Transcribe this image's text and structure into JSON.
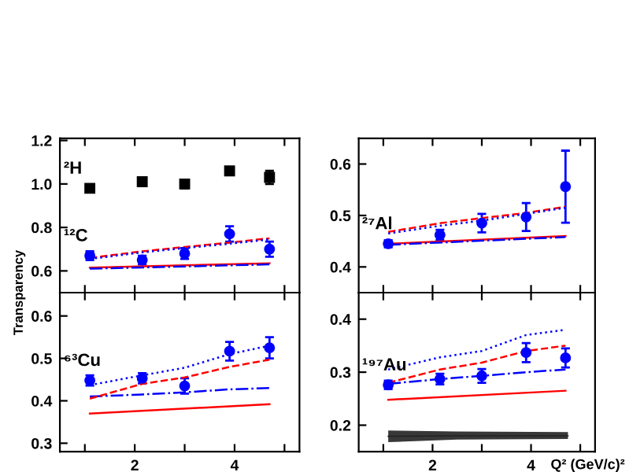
{
  "chart_data": [
    {
      "type": "scatter",
      "ylabel": "Transparency",
      "xlim": [
        0.5,
        5.3
      ],
      "ylim": [
        0.5,
        1.21
      ],
      "xticks": [
        {
          "value": 1,
          "label": null
        },
        2,
        {
          "value": 3,
          "label": null
        },
        4,
        {
          "value": 5,
          "label": null
        }
      ],
      "yticks": [
        0.6,
        0.8,
        {
          "value": 1.0,
          "label": "1.0"
        },
        1.2
      ],
      "tick_labels": "y",
      "grid": false,
      "series": [
        {
          "name": "²H",
          "marker": "square",
          "color": "#000000",
          "x": [
            1.1,
            2.15,
            3.0,
            3.9,
            4.7
          ],
          "values": [
            0.98,
            1.01,
            1.0,
            1.06,
            1.03
          ],
          "errors": [
            0.015,
            0.015,
            0.02,
            0.015,
            0.03
          ]
        },
        {
          "name": "¹²C",
          "marker": "circle",
          "color": "#0000ff",
          "x": [
            1.1,
            2.15,
            3.0,
            3.9,
            4.7
          ],
          "values": [
            0.67,
            0.65,
            0.68,
            0.77,
            0.7
          ],
          "errors": [
            0.02,
            0.02,
            0.025,
            0.035,
            0.035
          ]
        },
        {
          "type": "line",
          "line_style": "solid",
          "color": "#ff0000",
          "x": [
            1.1,
            4.7
          ],
          "values": [
            0.615,
            0.635
          ]
        },
        {
          "type": "line",
          "line_style": "dashdot",
          "color": "#0000ff",
          "x": [
            1.1,
            4.7
          ],
          "values": [
            0.61,
            0.63
          ]
        },
        {
          "type": "line",
          "line_style": "dashed",
          "color": "#ff0000",
          "x": [
            1.1,
            2.15,
            3.0,
            3.9,
            4.7
          ],
          "values": [
            0.66,
            0.69,
            0.71,
            0.73,
            0.75
          ]
        },
        {
          "type": "line",
          "line_style": "dotted",
          "color": "#0000ff",
          "x": [
            1.1,
            2.15,
            3.0,
            3.9,
            4.7
          ],
          "values": [
            0.655,
            0.685,
            0.705,
            0.725,
            0.745
          ]
        }
      ]
    },
    {
      "type": "scatter",
      "xlim": [
        0.5,
        5.3
      ],
      "ylim": [
        0.35,
        0.65
      ],
      "xticks": [
        {
          "value": 1,
          "label": null
        },
        2,
        {
          "value": 3,
          "label": null
        },
        4,
        {
          "value": 5,
          "label": null
        }
      ],
      "yticks": [
        0.4,
        0.5,
        0.6
      ],
      "tick_labels": "y",
      "grid": false,
      "legend": false,
      "series": [
        {
          "name": "²⁷Al",
          "marker": "circle",
          "color": "#0000ff",
          "x": [
            1.1,
            2.15,
            3.0,
            3.9,
            4.7
          ],
          "values": [
            0.445,
            0.462,
            0.485,
            0.497,
            0.556
          ],
          "errors": [
            0.007,
            0.01,
            0.018,
            0.027,
            0.07
          ]
        },
        {
          "type": "line",
          "line_style": "solid",
          "color": "#ff0000",
          "x": [
            1.1,
            4.7
          ],
          "values": [
            0.445,
            0.46
          ]
        },
        {
          "type": "line",
          "line_style": "dashdot",
          "color": "#0000ff",
          "x": [
            1.1,
            4.7
          ],
          "values": [
            0.443,
            0.458
          ]
        },
        {
          "type": "line",
          "line_style": "dashed",
          "color": "#ff0000",
          "x": [
            1.1,
            2.15,
            3.0,
            3.9,
            4.7
          ],
          "values": [
            0.468,
            0.485,
            0.495,
            0.505,
            0.517
          ]
        },
        {
          "type": "line",
          "line_style": "dotted",
          "color": "#0000ff",
          "x": [
            1.1,
            2.15,
            3.0,
            3.9,
            4.7
          ],
          "values": [
            0.465,
            0.48,
            0.49,
            0.503,
            0.515
          ]
        }
      ]
    },
    {
      "type": "scatter",
      "xlim": [
        0.5,
        5.3
      ],
      "ylim": [
        0.28,
        0.655
      ],
      "xticks": [
        {
          "value": 1,
          "label": null
        },
        2,
        {
          "value": 3,
          "label": null
        },
        4,
        {
          "value": 5,
          "label": null
        }
      ],
      "yticks": [
        0.3,
        0.4,
        0.5,
        0.6
      ],
      "grid": false,
      "legend": false,
      "series": [
        {
          "name": "⁶³Cu",
          "marker": "circle",
          "color": "#0000ff",
          "x": [
            1.1,
            2.15,
            3.0,
            3.9,
            4.7
          ],
          "values": [
            0.448,
            0.453,
            0.435,
            0.517,
            0.525
          ],
          "errors": [
            0.012,
            0.012,
            0.018,
            0.022,
            0.025
          ]
        },
        {
          "type": "line",
          "line_style": "solid",
          "color": "#ff0000",
          "x": [
            1.1,
            4.7
          ],
          "values": [
            0.37,
            0.392
          ]
        },
        {
          "type": "line",
          "line_style": "dashdot",
          "color": "#0000ff",
          "x": [
            1.1,
            2.15,
            3.0,
            3.9,
            4.7
          ],
          "values": [
            0.41,
            0.415,
            0.42,
            0.427,
            0.43
          ]
        },
        {
          "type": "line",
          "line_style": "dashed",
          "color": "#ff0000",
          "x": [
            1.1,
            2.15,
            3.0,
            3.9,
            4.7
          ],
          "values": [
            0.405,
            0.44,
            0.455,
            0.48,
            0.497
          ]
        },
        {
          "type": "line",
          "line_style": "dotted",
          "color": "#0000ff",
          "x": [
            1.1,
            2.15,
            3.0,
            3.9,
            4.7
          ],
          "values": [
            0.437,
            0.46,
            0.478,
            0.51,
            0.53
          ]
        }
      ]
    },
    {
      "type": "scatter",
      "xlabel": "Q² (GeV/c)²",
      "xlim": [
        0.5,
        5.3
      ],
      "ylim": [
        0.15,
        0.45
      ],
      "xticks": [
        {
          "value": 1,
          "label": null
        },
        2,
        {
          "value": 3,
          "label": null
        },
        4,
        {
          "value": 5,
          "label": null
        }
      ],
      "yticks": [
        0.2,
        0.3,
        0.4
      ],
      "grid": false,
      "legend": false,
      "series": [
        {
          "name": "¹⁹⁷Au",
          "marker": "circle",
          "color": "#0000ff",
          "x": [
            1.1,
            2.15,
            3.0,
            3.9,
            4.7
          ],
          "values": [
            0.276,
            0.287,
            0.293,
            0.337,
            0.327
          ],
          "errors": [
            0.008,
            0.01,
            0.013,
            0.018,
            0.018
          ]
        },
        {
          "type": "line",
          "line_style": "solid",
          "color": "#ff0000",
          "x": [
            1.1,
            4.7
          ],
          "values": [
            0.248,
            0.265
          ]
        },
        {
          "type": "line",
          "line_style": "dashdot",
          "color": "#0000ff",
          "x": [
            1.1,
            2.15,
            3.0,
            3.9,
            4.7
          ],
          "values": [
            0.278,
            0.287,
            0.293,
            0.3,
            0.305
          ]
        },
        {
          "type": "line",
          "line_style": "dashed",
          "color": "#ff0000",
          "x": [
            1.1,
            2.15,
            3.0,
            3.9,
            4.7
          ],
          "values": [
            0.28,
            0.305,
            0.318,
            0.34,
            0.35
          ]
        },
        {
          "type": "line",
          "line_style": "dotted",
          "color": "#0000ff",
          "x": [
            1.1,
            2.15,
            3.0,
            3.9,
            4.7
          ],
          "values": [
            0.305,
            0.328,
            0.34,
            0.37,
            0.38
          ]
        },
        {
          "type": "line",
          "color": "#222222",
          "x": [
            1.1,
            2.5,
            4.75
          ],
          "values": [
            0.179,
            0.18,
            0.18
          ],
          "lower": [
            0.168,
            0.173,
            0.174
          ],
          "upper": [
            0.19,
            0.188,
            0.187
          ]
        }
      ]
    }
  ]
}
